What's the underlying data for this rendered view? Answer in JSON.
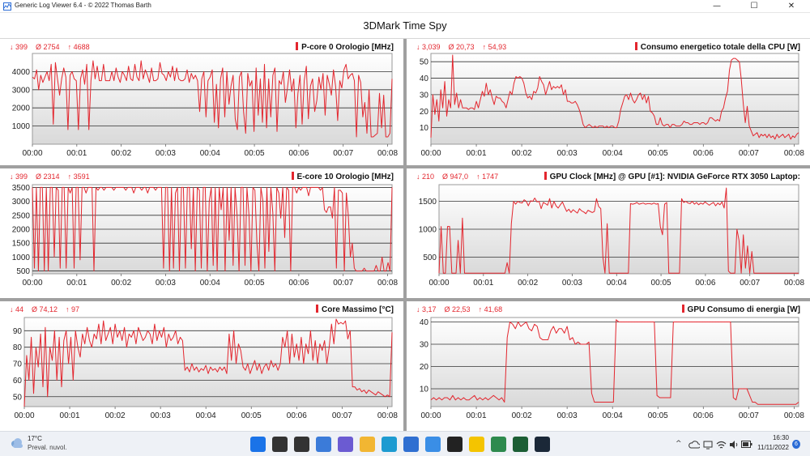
{
  "window": {
    "title": "Generic Log Viewer 6.4 - © 2022 Thomas Barth",
    "minimize_glyph": "—",
    "maximize_glyph": "☐",
    "close_glyph": "✕"
  },
  "page_title": "3DMark Time Spy",
  "accent_color": "#e3262e",
  "chart_data": [
    {
      "type": "line",
      "title": "P-core 0 Orologio [MHz]",
      "stats": {
        "min": "↓ 399",
        "avg": "Ø 2754",
        "max": "↑ 4688"
      },
      "xlim": [
        0,
        8.1
      ],
      "ylim": [
        0,
        5000
      ],
      "yticks": [
        1000,
        2000,
        3000,
        4000
      ],
      "xticks": [
        "00:00",
        "00:01",
        "00:02",
        "00:03",
        "00:04",
        "00:05",
        "00:06",
        "00:07",
        "00:08"
      ],
      "grid": true,
      "y": [
        3700,
        3600,
        4100,
        3000,
        3800,
        3400,
        3700,
        4000,
        3500,
        4400,
        1100,
        4500,
        3600,
        2700,
        3600,
        4200,
        3700,
        800,
        3800,
        4000,
        3600,
        3500,
        800,
        3600,
        4100,
        3300,
        4400,
        800,
        3500,
        4600,
        3600,
        4300,
        3500,
        3500,
        4400,
        3500,
        3500,
        3500,
        4000,
        3500,
        4200,
        3700,
        3400,
        4000,
        3800,
        3500,
        4300,
        3600,
        3500,
        4400,
        3700,
        3500,
        4600,
        3600,
        4100,
        3800,
        3400,
        4200,
        3500,
        3500,
        3600,
        4500,
        3900,
        3800,
        3500,
        4000,
        3700,
        4300,
        3500,
        4200,
        3600,
        3500,
        3500,
        3600,
        4100,
        3400,
        3900,
        3600,
        3800,
        3500,
        1800,
        3600,
        4000,
        1500,
        3500,
        3700,
        4100,
        1200,
        3300,
        900,
        3600,
        4200,
        1500,
        4000,
        2200,
        3200,
        3800,
        1400,
        800,
        3700,
        4000,
        1800,
        600,
        3900,
        3200,
        3500,
        700,
        4200,
        1600,
        3600,
        1200,
        4400,
        900,
        3600,
        1500,
        3800,
        4200,
        700,
        3500,
        3300,
        4000,
        2300,
        3100,
        4100,
        2900,
        3600,
        900,
        2800,
        3800,
        1100,
        3500,
        4300,
        1400,
        3200,
        3600,
        1800,
        2400,
        3700,
        3000,
        3900,
        1600,
        3800,
        3300,
        2700,
        4100,
        3200,
        1300,
        3500,
        3100,
        4100,
        4400,
        3600,
        3800,
        3900,
        3500,
        400,
        3800,
        3400,
        1500,
        2300,
        600,
        3000,
        400,
        400,
        500,
        600,
        2800,
        900,
        2700,
        400,
        400,
        600,
        3600
      ]
    },
    {
      "type": "line",
      "title": "Consumo energetico totale della CPU [W]",
      "stats": {
        "min": "↓ 3,039",
        "avg": "Ø 20,73",
        "max": "↑ 54,93"
      },
      "xlim": [
        0,
        8.1
      ],
      "ylim": [
        0,
        55
      ],
      "yticks": [
        10,
        20,
        30,
        40,
        50
      ],
      "xticks": [
        "00:00",
        "00:01",
        "00:02",
        "00:03",
        "00:04",
        "00:05",
        "00:06",
        "00:07",
        "00:08"
      ],
      "grid": true,
      "y": [
        4,
        30,
        18,
        27,
        14,
        33,
        22,
        38,
        17,
        27,
        22,
        54,
        24,
        31,
        22,
        27,
        22,
        22,
        22,
        21,
        22,
        22,
        21,
        26,
        22,
        27,
        32,
        29,
        37,
        30,
        33,
        28,
        24,
        29,
        28,
        28,
        26,
        25,
        22,
        27,
        32,
        30,
        37,
        41,
        40,
        41,
        40,
        37,
        31,
        28,
        29,
        27,
        32,
        31,
        34,
        41,
        38,
        36,
        30,
        34,
        38,
        33,
        35,
        34,
        35,
        34,
        36,
        30,
        33,
        26,
        26,
        25,
        25,
        26,
        24,
        21,
        17,
        12,
        10,
        11,
        12,
        11,
        10,
        11,
        10,
        11,
        11,
        11,
        10,
        11,
        10,
        11,
        11,
        10,
        10,
        14,
        21,
        25,
        29,
        30,
        27,
        31,
        27,
        25,
        27,
        30,
        31,
        27,
        30,
        25,
        29,
        20,
        19,
        17,
        12,
        12,
        16,
        12,
        11,
        12,
        12,
        10,
        12,
        12,
        11,
        11,
        11,
        12,
        14,
        13,
        13,
        12,
        12,
        13,
        13,
        13,
        12,
        13,
        13,
        12,
        13,
        16,
        16,
        15,
        14,
        15,
        14,
        20,
        22,
        28,
        32,
        45,
        51,
        52,
        52,
        51,
        50,
        39,
        24,
        13,
        23,
        11,
        8,
        5,
        6,
        7,
        4,
        6,
        5,
        6,
        4,
        6,
        4,
        5,
        3,
        6,
        4,
        5,
        6,
        4,
        5,
        6,
        3,
        5,
        4,
        6,
        7
      ]
    },
    {
      "type": "line",
      "title": "E-core 10 Orologio [MHz]",
      "stats": {
        "min": "↓ 399",
        "avg": "Ø 2314",
        "max": "↑ 3591"
      },
      "xlim": [
        0,
        8.1
      ],
      "ylim": [
        400,
        3600
      ],
      "yticks": [
        500,
        1000,
        1500,
        2000,
        2500,
        3000,
        3500
      ],
      "xticks": [
        "00:00",
        "00:01",
        "00:02",
        "00:03",
        "00:04",
        "00:05",
        "00:06",
        "00:07",
        "00:08"
      ],
      "grid": true,
      "y": [
        3500,
        600,
        3500,
        500,
        3500,
        3500,
        500,
        3500,
        500,
        3500,
        3500,
        1000,
        3500,
        3400,
        600,
        3500,
        3500,
        600,
        3500,
        3300,
        3500,
        600,
        3500,
        3500,
        900,
        3500,
        3500,
        3300,
        3500,
        3500,
        3500,
        500,
        3500,
        3400,
        3500,
        3500,
        3400,
        3500,
        3500,
        3500,
        3500,
        3400,
        3500,
        3500,
        3500,
        3500,
        3500,
        3400,
        3500,
        3500,
        3500,
        3300,
        3500,
        3500,
        3500,
        3400,
        3500,
        3500,
        3300,
        3500,
        3500,
        3500,
        3400,
        3500,
        3500,
        3500,
        600,
        3500,
        3500,
        500,
        3500,
        600,
        3300,
        3500,
        500,
        3500,
        3500,
        600,
        3500,
        3500,
        1300,
        3500,
        500,
        3500,
        3400,
        600,
        3500,
        3500,
        500,
        3000,
        3500,
        700,
        3500,
        500,
        3500,
        2700,
        3500,
        500,
        3500,
        1600,
        3500,
        700,
        3500,
        2500,
        500,
        3500,
        3500,
        700,
        3500,
        2500,
        500,
        3500,
        3400,
        1500,
        500,
        3500,
        3000,
        600,
        3500,
        1200,
        3500,
        2600,
        500,
        3500,
        3300,
        2400,
        3500,
        1700,
        3500,
        3400,
        500,
        3500,
        3500,
        3300,
        3500,
        3400,
        3500,
        3500,
        3500,
        3200,
        3500,
        3500,
        3500,
        3500,
        3500,
        3400,
        3500,
        2700,
        2600,
        2800,
        2800,
        2400,
        3500,
        600,
        3400,
        3400,
        3300,
        500,
        3300,
        2500,
        1000,
        1500,
        600,
        500,
        500,
        500,
        500,
        600,
        500,
        500,
        500,
        500,
        500,
        700,
        500,
        500,
        1000,
        500,
        500,
        800,
        500,
        3500
      ]
    },
    {
      "type": "line",
      "title": "GPU Clock [MHz] @ GPU [#1]: NVIDIA GeForce RTX 3050 Laptop:",
      "stats": {
        "min": "↓ 210",
        "avg": "Ø 947,0",
        "max": "↑ 1747"
      },
      "xlim": [
        0,
        8.1
      ],
      "ylim": [
        200,
        1800
      ],
      "yticks": [
        500,
        1000,
        1500
      ],
      "xticks": [
        "00:00",
        "00:01",
        "00:02",
        "00:03",
        "00:04",
        "00:05",
        "00:06",
        "00:07",
        "00:08"
      ],
      "grid": true,
      "y": [
        210,
        1050,
        210,
        210,
        1050,
        1050,
        210,
        210,
        210,
        800,
        210,
        1200,
        210,
        210,
        210,
        210,
        210,
        210,
        210,
        210,
        210,
        210,
        210,
        210,
        210,
        210,
        210,
        210,
        210,
        210,
        210,
        210,
        400,
        210,
        1100,
        1500,
        1450,
        1500,
        1480,
        1470,
        1530,
        1500,
        1420,
        1510,
        1500,
        1560,
        1490,
        1500,
        1370,
        1480,
        1460,
        1430,
        1550,
        1380,
        1500,
        1420,
        1380,
        1440,
        1490,
        1400,
        1320,
        1360,
        1300,
        1350,
        1320,
        1290,
        1370,
        1330,
        1310,
        1280,
        1340,
        1320,
        1300,
        1320,
        1550,
        1410,
        1370,
        500,
        210,
        1100,
        210,
        210,
        210,
        210,
        210,
        210,
        210,
        210,
        210,
        210,
        1460,
        1450,
        1460,
        1480,
        1450,
        1460,
        1470,
        1450,
        1460,
        1460,
        1450,
        1470,
        1450,
        1460,
        1050,
        900,
        1450,
        1480,
        210,
        210,
        210,
        210,
        210,
        210,
        1550,
        1480,
        1500,
        1470,
        1460,
        1500,
        1450,
        1480,
        1440,
        1470,
        1450,
        1490,
        1460,
        1430,
        1460,
        1480,
        1420,
        1470,
        1440,
        1490,
        1380,
        1740,
        250,
        210,
        210,
        210,
        1000,
        800,
        210,
        900,
        300,
        700,
        210,
        600,
        210,
        210,
        210,
        210,
        210,
        210,
        210,
        210,
        210,
        210,
        210,
        210,
        210,
        210,
        210,
        210,
        210,
        210,
        210,
        210,
        210,
        210
      ]
    },
    {
      "type": "line",
      "title": "Core Massimo [°C]",
      "stats": {
        "min": "↓ 44",
        "avg": "Ø 74,12",
        "max": "↑ 97"
      },
      "xlim": [
        0,
        8.1
      ],
      "ylim": [
        44,
        98
      ],
      "yticks": [
        50,
        60,
        70,
        80,
        90
      ],
      "xticks": [
        "00:00",
        "00:01",
        "00:02",
        "00:03",
        "00:04",
        "00:05",
        "00:06",
        "00:07",
        "00:08"
      ],
      "grid": true,
      "y": [
        44,
        75,
        60,
        86,
        52,
        80,
        68,
        88,
        56,
        92,
        50,
        80,
        72,
        90,
        60,
        86,
        56,
        84,
        90,
        70,
        86,
        60,
        90,
        80,
        74,
        88,
        82,
        92,
        84,
        80,
        88,
        85,
        94,
        82,
        96,
        84,
        88,
        92,
        82,
        94,
        86,
        90,
        84,
        92,
        80,
        88,
        86,
        90,
        82,
        92,
        88,
        84,
        86,
        90,
        88,
        82,
        94,
        84,
        90,
        86,
        92,
        80,
        88,
        84,
        86,
        90,
        82,
        86,
        84,
        66,
        68,
        65,
        70,
        66,
        68,
        65,
        67,
        66,
        69,
        64,
        68,
        66,
        67,
        65,
        68,
        66,
        68,
        64,
        88,
        72,
        90,
        70,
        82,
        78,
        68,
        66,
        70,
        64,
        68,
        72,
        66,
        70,
        64,
        68,
        70,
        66,
        72,
        68,
        70,
        66,
        70,
        86,
        80,
        90,
        70,
        88,
        74,
        82,
        72,
        86,
        70,
        82,
        76,
        90,
        72,
        84,
        70,
        82,
        78,
        84,
        70,
        80,
        94,
        82,
        97,
        94,
        95,
        94,
        96,
        85,
        90,
        56,
        56,
        54,
        55,
        53,
        54,
        52,
        54,
        53,
        52,
        51,
        53,
        52,
        51,
        50,
        51,
        50,
        89
      ]
    },
    {
      "type": "line",
      "title": "GPU Consumo di energia [W]",
      "stats": {
        "min": "↓ 3,17",
        "avg": "Ø 22,53",
        "max": "↑ 41,68"
      },
      "xlim": [
        0,
        8.1
      ],
      "ylim": [
        2,
        42
      ],
      "yticks": [
        10,
        20,
        30,
        40
      ],
      "xticks": [
        "00:00",
        "00:01",
        "00:02",
        "00:03",
        "00:04",
        "00:05",
        "00:06",
        "00:07",
        "00:08"
      ],
      "grid": true,
      "y": [
        5,
        6,
        5,
        6,
        5,
        6,
        6,
        5,
        7,
        5,
        6,
        5,
        6,
        5,
        5,
        6,
        7,
        5,
        6,
        5,
        6,
        5,
        6,
        7,
        6,
        5,
        6,
        4,
        33,
        40,
        39,
        37,
        40,
        38,
        39,
        40,
        37,
        36,
        39,
        38,
        33,
        32,
        32,
        32,
        36,
        38,
        35,
        37,
        37,
        35,
        38,
        32,
        33,
        30,
        31,
        30,
        30,
        30,
        31,
        8,
        4,
        4,
        4,
        4,
        4,
        4,
        4,
        4,
        41,
        40,
        40,
        40,
        40,
        40,
        40,
        40,
        40,
        40,
        40,
        40,
        40,
        40,
        40,
        7,
        6,
        6,
        6,
        6,
        6,
        40,
        40,
        40,
        40,
        40,
        40,
        40,
        40,
        40,
        40,
        40,
        40,
        40,
        40,
        40,
        40,
        40,
        40,
        40,
        40,
        40,
        40,
        6,
        5,
        10,
        10,
        10,
        10,
        7,
        4,
        4,
        3,
        3,
        3,
        3,
        3,
        3,
        3,
        3,
        3,
        3,
        3,
        3,
        3,
        3,
        3,
        4
      ]
    }
  ],
  "taskbar": {
    "weather_temp": "17°C",
    "weather_desc": "Preval. nuvol.",
    "clock_time": "16:30",
    "clock_date": "11/11/2022",
    "notification_count": "6",
    "tray_chevron": "^",
    "apps": [
      {
        "name": "start-button-icon",
        "color": "#1a73e8"
      },
      {
        "name": "search-icon",
        "color": "#333333"
      },
      {
        "name": "task-view-icon",
        "color": "#333333"
      },
      {
        "name": "widgets-icon",
        "color": "#3b7bd9"
      },
      {
        "name": "teams-icon",
        "color": "#6b5bd2"
      },
      {
        "name": "file-explorer-icon",
        "color": "#f2b632"
      },
      {
        "name": "edge-icon",
        "color": "#1d9bd1"
      },
      {
        "name": "store-icon",
        "color": "#2f6fd1"
      },
      {
        "name": "photos-icon",
        "color": "#3a8ee6"
      },
      {
        "name": "xbox-icon",
        "color": "#222222"
      },
      {
        "name": "norton-icon",
        "color": "#f4c400"
      },
      {
        "name": "gpu-monitor-icon",
        "color": "#2d8a4e"
      },
      {
        "name": "log-viewer-icon",
        "color": "#1c5e35"
      },
      {
        "name": "steam-icon",
        "color": "#1b2838"
      }
    ]
  }
}
